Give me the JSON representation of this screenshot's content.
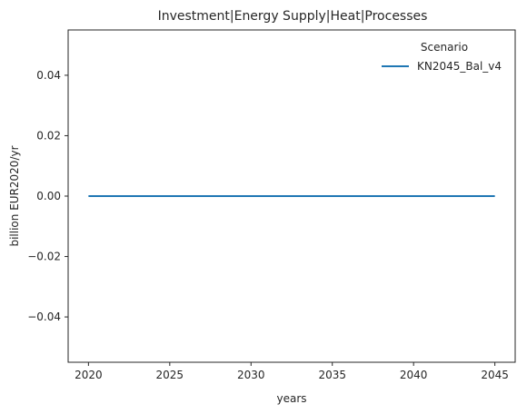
{
  "chart_data": {
    "type": "line",
    "title": "Investment|Energy Supply|Heat|Processes",
    "xlabel": "years",
    "ylabel": "billion EUR2020/yr",
    "xlim": [
      2018.75,
      2046.25
    ],
    "ylim": [
      -0.055,
      0.055
    ],
    "x_ticks": [
      2020,
      2025,
      2030,
      2035,
      2040,
      2045
    ],
    "y_ticks": [
      -0.04,
      -0.02,
      0.0,
      0.02,
      0.04
    ],
    "y_tick_labels": [
      "−0.04",
      "−0.02",
      "0.00",
      "0.02",
      "0.04"
    ],
    "grid": false,
    "legend": {
      "title": "Scenario",
      "position": "top-right"
    },
    "series": [
      {
        "name": "KN2045_Bal_v4",
        "color": "#1f77b4",
        "x": [
          2020,
          2025,
          2030,
          2035,
          2040,
          2045
        ],
        "y": [
          0,
          0,
          0,
          0,
          0,
          0
        ]
      }
    ]
  }
}
